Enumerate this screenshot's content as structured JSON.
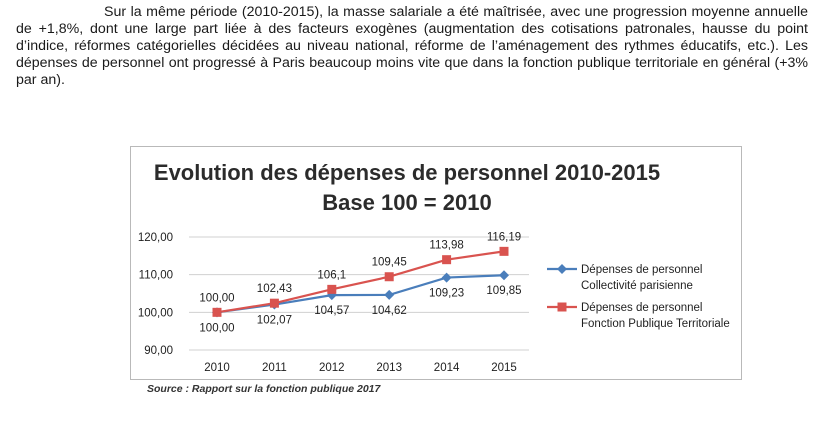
{
  "paragraph": {
    "text": "Sur la même période (2010-2015), la masse salariale a été maîtrisée, avec une progression moyenne annuelle de +1,8%, dont une large part liée à des facteurs exogènes (augmentation des cotisations patronales, hausse du point d’indice, réformes catégorielles décidées au niveau national, réforme de l’aménagement des rythmes éducatifs, etc.). Les dépenses de personnel ont progressé à Paris beaucoup moins vite que dans la fonction publique territoriale en général (+3% par an)."
  },
  "source": "Source : Rapport sur la fonction publique 2017",
  "chart_data": {
    "type": "line",
    "title": "Evolution des dépenses de personnel 2010-2015",
    "subtitle": "Base 100 = 2010",
    "categories": [
      "2010",
      "2011",
      "2012",
      "2013",
      "2014",
      "2015"
    ],
    "ylim": [
      90,
      120
    ],
    "yticks": [
      90,
      100,
      110,
      120
    ],
    "ytick_labels": [
      "90,00",
      "100,00",
      "110,00",
      "120,00"
    ],
    "grid": "horizontal",
    "legend_position": "right",
    "series": [
      {
        "name": "Dépenses de personnel Collectivité parisienne",
        "legend_lines": [
          "Dépenses de personnel",
          "Collectivité parisienne"
        ],
        "values": [
          100.0,
          102.07,
          104.57,
          104.62,
          109.23,
          109.85
        ],
        "labels": [
          "100,00",
          "102,07",
          "104,57",
          "104,62",
          "109,23",
          "109,85"
        ],
        "color": "#4a7ebb",
        "marker": "diamond",
        "label_position": "below"
      },
      {
        "name": "Dépenses de personnel Fonction Publique Territoriale",
        "legend_lines": [
          "Dépenses de personnel",
          "Fonction Publique Territoriale"
        ],
        "values": [
          100.0,
          102.43,
          106.1,
          109.45,
          113.98,
          116.19
        ],
        "labels": [
          "100,00",
          "102,43",
          "106,1",
          "109,45",
          "113,98",
          "116,19"
        ],
        "color": "#d9534f",
        "marker": "square",
        "label_position": "above"
      }
    ]
  }
}
